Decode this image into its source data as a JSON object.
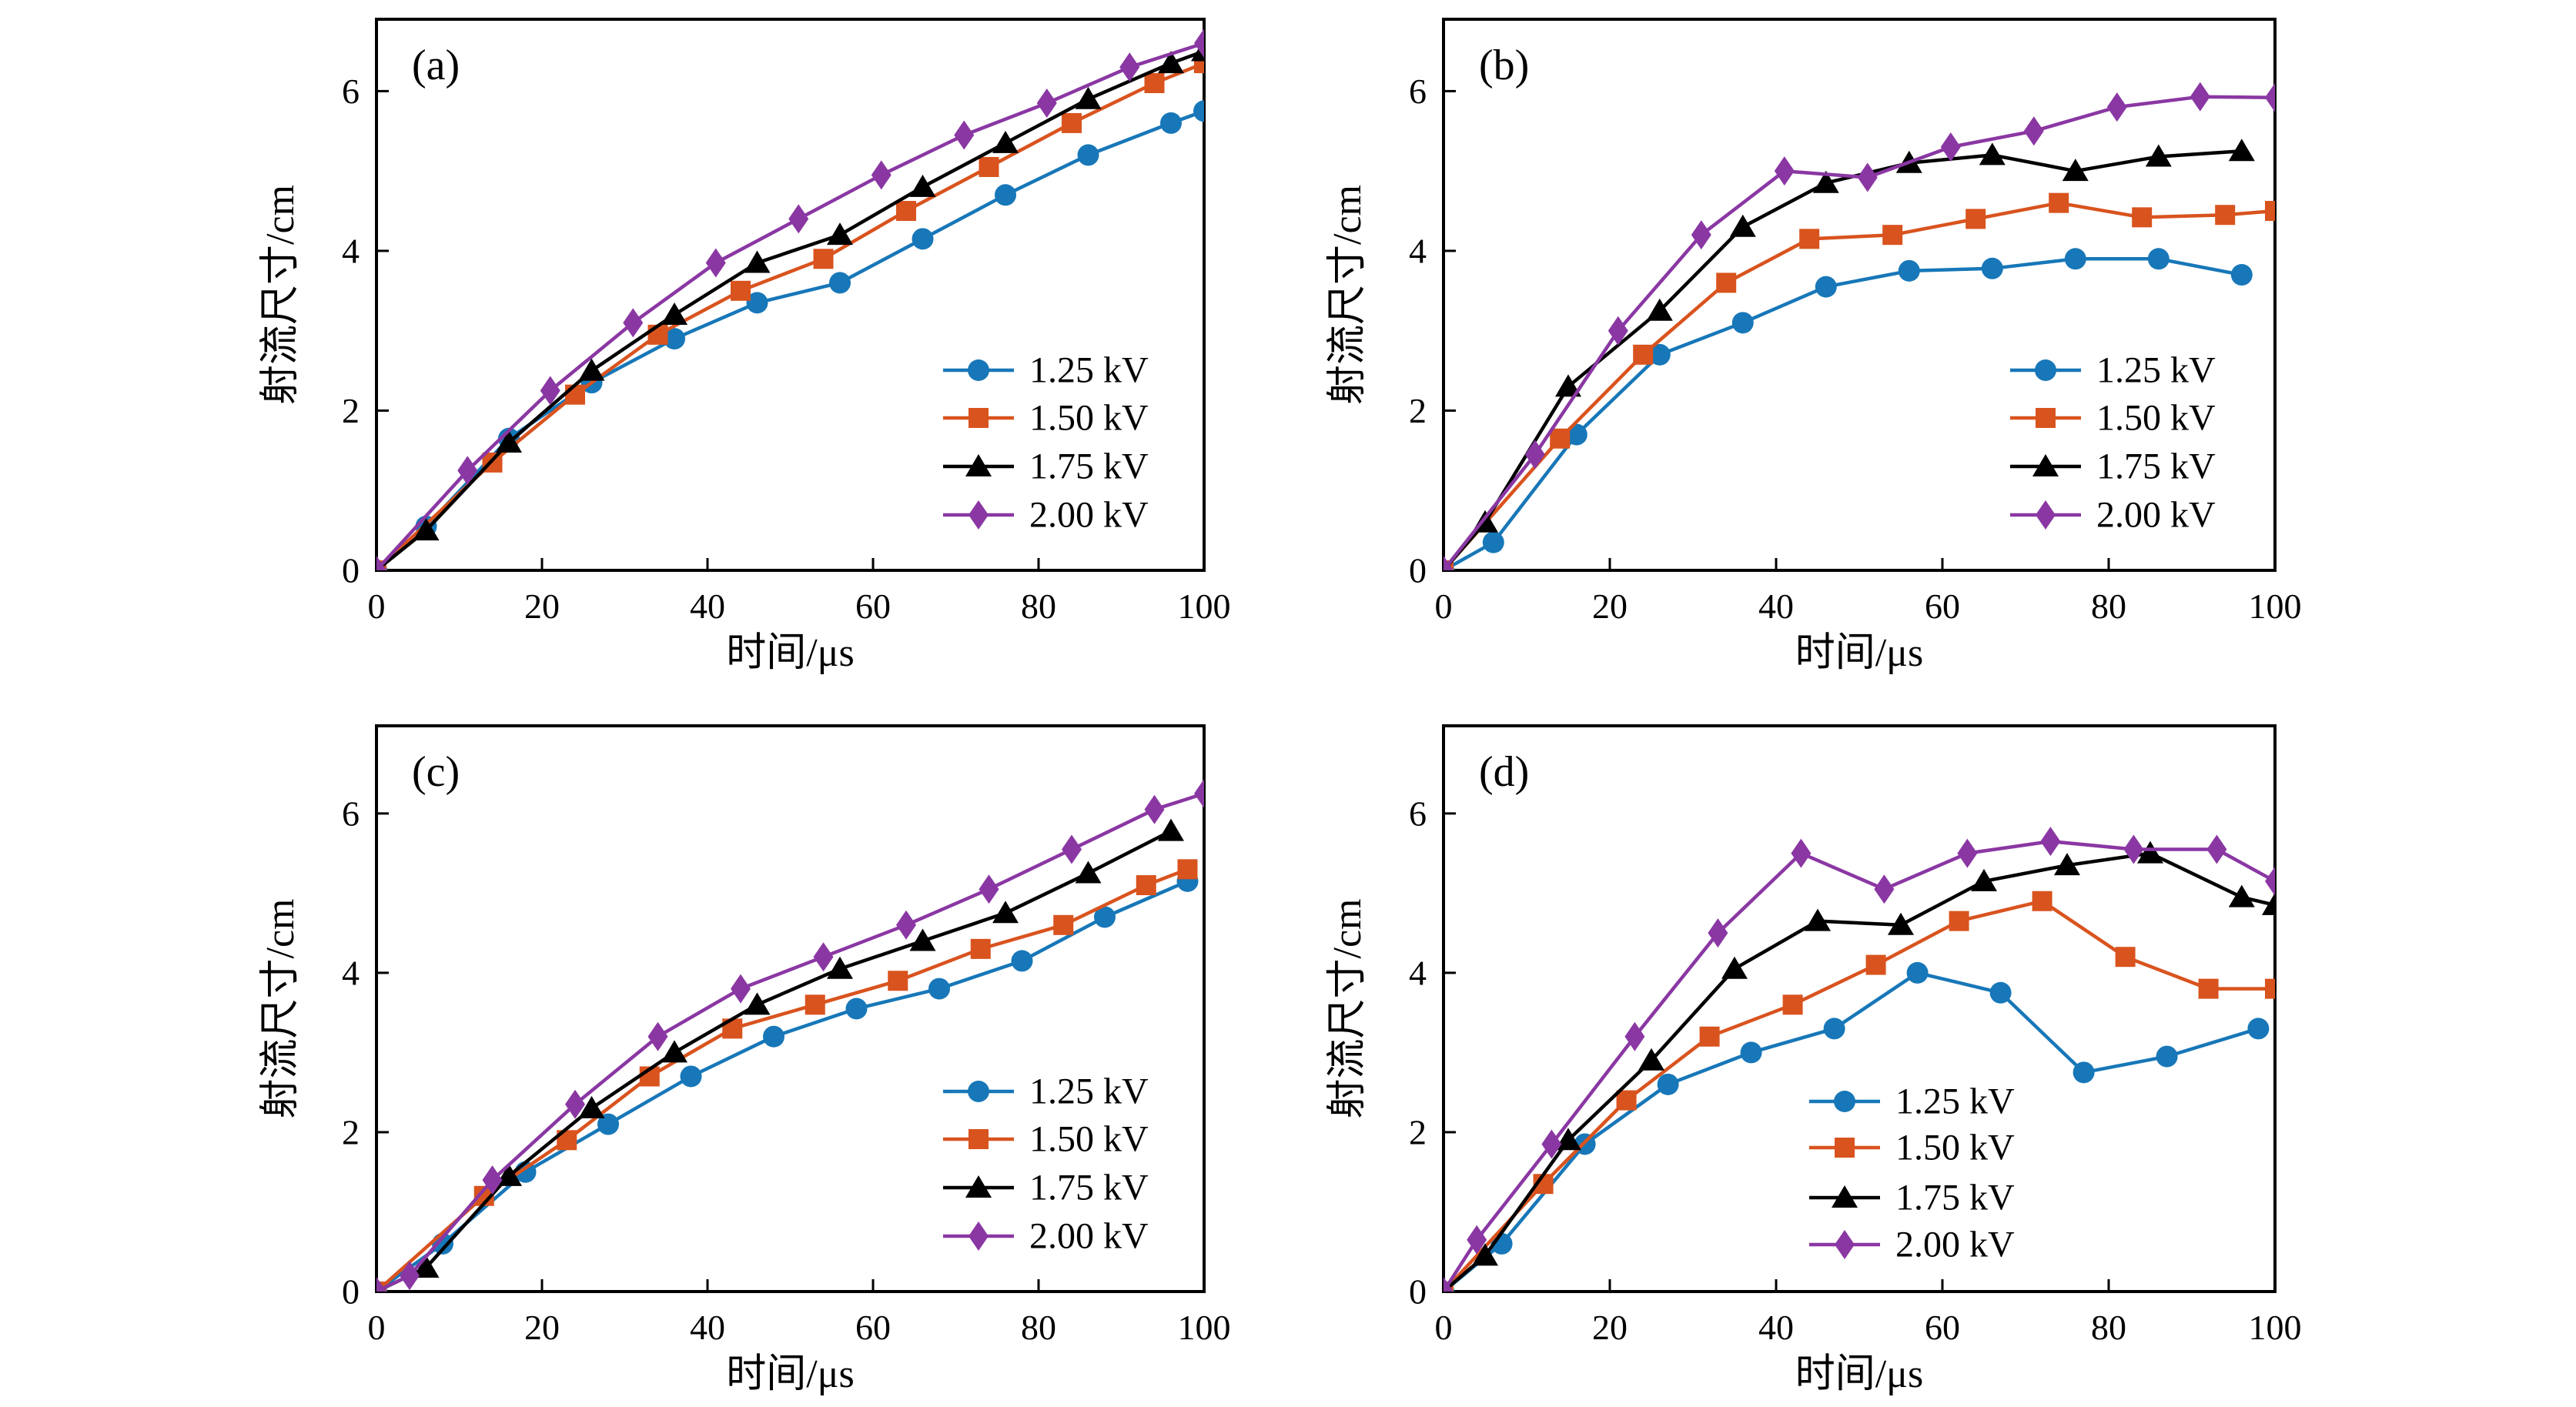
{
  "figure": {
    "background": "#ffffff",
    "x_axis_label": "时间/μs",
    "y_axis_label": "射流尺寸/cm",
    "legend_labels": [
      "1.25 kV",
      "1.50 kV",
      "1.75 kV",
      "2.00 kV"
    ],
    "series_colors": {
      "1.25 kV": "#1777B8",
      "1.50 kV": "#D9531E",
      "1.75 kV": "#000000",
      "2.00 kV": "#8A37A3"
    },
    "series_markers": {
      "1.25 kV": "circle",
      "1.50 kV": "square",
      "1.75 kV": "triangle",
      "2.00 kV": "diamond"
    }
  },
  "chart_data": [
    {
      "type": "line",
      "panel_label": "(a)",
      "xlabel": "时间/μs",
      "ylabel": "射流尺寸/cm",
      "xlim": [
        0,
        100
      ],
      "ylim": [
        0,
        6.9
      ],
      "x_ticks": [
        0,
        20,
        40,
        60,
        80,
        100
      ],
      "y_ticks": [
        0,
        2,
        4,
        6
      ],
      "grid": false,
      "legend_position": "right-middle",
      "series": [
        {
          "name": "1.25 kV",
          "color": "#1777B8",
          "marker": "circle",
          "points": [
            [
              0,
              0
            ],
            [
              6,
              0.55
            ],
            [
              16,
              1.65
            ],
            [
              26,
              2.35
            ],
            [
              36,
              2.9
            ],
            [
              46,
              3.35
            ],
            [
              56,
              3.6
            ],
            [
              66,
              4.15
            ],
            [
              76,
              4.7
            ],
            [
              86,
              5.2
            ],
            [
              96,
              5.6
            ],
            [
              100,
              5.75
            ]
          ]
        },
        {
          "name": "1.50 kV",
          "color": "#D9531E",
          "marker": "square",
          "points": [
            [
              0,
              0
            ],
            [
              14,
              1.35
            ],
            [
              24,
              2.2
            ],
            [
              34,
              2.95
            ],
            [
              44,
              3.5
            ],
            [
              54,
              3.9
            ],
            [
              64,
              4.5
            ],
            [
              74,
              5.05
            ],
            [
              84,
              5.6
            ],
            [
              94,
              6.1
            ],
            [
              100,
              6.35
            ]
          ]
        },
        {
          "name": "1.75 kV",
          "color": "#000000",
          "marker": "triangle",
          "points": [
            [
              0,
              0
            ],
            [
              6,
              0.5
            ],
            [
              16,
              1.6
            ],
            [
              26,
              2.5
            ],
            [
              36,
              3.2
            ],
            [
              46,
              3.85
            ],
            [
              56,
              4.2
            ],
            [
              66,
              4.8
            ],
            [
              76,
              5.35
            ],
            [
              86,
              5.9
            ],
            [
              96,
              6.35
            ],
            [
              100,
              6.5
            ]
          ]
        },
        {
          "name": "2.00 kV",
          "color": "#8A37A3",
          "marker": "diamond",
          "points": [
            [
              0,
              0
            ],
            [
              11,
              1.25
            ],
            [
              21,
              2.25
            ],
            [
              31,
              3.1
            ],
            [
              41,
              3.85
            ],
            [
              51,
              4.4
            ],
            [
              61,
              4.95
            ],
            [
              71,
              5.45
            ],
            [
              81,
              5.85
            ],
            [
              91,
              6.3
            ],
            [
              100,
              6.6
            ]
          ]
        }
      ]
    },
    {
      "type": "line",
      "panel_label": "(b)",
      "xlabel": "时间/μs",
      "ylabel": "射流尺寸/cm",
      "xlim": [
        0,
        100
      ],
      "ylim": [
        0,
        6.9
      ],
      "x_ticks": [
        0,
        20,
        40,
        60,
        80,
        100
      ],
      "y_ticks": [
        0,
        2,
        4,
        6
      ],
      "grid": false,
      "legend_position": "right-middle",
      "series": [
        {
          "name": "1.25 kV",
          "color": "#1777B8",
          "marker": "circle",
          "points": [
            [
              0,
              0
            ],
            [
              6,
              0.35
            ],
            [
              16,
              1.7
            ],
            [
              26,
              2.7
            ],
            [
              36,
              3.1
            ],
            [
              46,
              3.55
            ],
            [
              56,
              3.75
            ],
            [
              66,
              3.78
            ],
            [
              76,
              3.9
            ],
            [
              86,
              3.9
            ],
            [
              96,
              3.7
            ]
          ]
        },
        {
          "name": "1.50 kV",
          "color": "#D9531E",
          "marker": "square",
          "points": [
            [
              0,
              0
            ],
            [
              14,
              1.65
            ],
            [
              24,
              2.7
            ],
            [
              34,
              3.6
            ],
            [
              44,
              4.15
            ],
            [
              54,
              4.2
            ],
            [
              64,
              4.4
            ],
            [
              74,
              4.6
            ],
            [
              84,
              4.42
            ],
            [
              94,
              4.45
            ],
            [
              100,
              4.5
            ]
          ]
        },
        {
          "name": "1.75 kV",
          "color": "#000000",
          "marker": "triangle",
          "points": [
            [
              0,
              0
            ],
            [
              5,
              0.6
            ],
            [
              15,
              2.3
            ],
            [
              26,
              3.25
            ],
            [
              36,
              4.3
            ],
            [
              46,
              4.85
            ],
            [
              56,
              5.1
            ],
            [
              66,
              5.2
            ],
            [
              76,
              5.0
            ],
            [
              86,
              5.18
            ],
            [
              96,
              5.25
            ]
          ]
        },
        {
          "name": "2.00 kV",
          "color": "#8A37A3",
          "marker": "diamond",
          "points": [
            [
              0,
              0
            ],
            [
              11,
              1.45
            ],
            [
              21,
              3.0
            ],
            [
              31,
              4.2
            ],
            [
              41,
              5.0
            ],
            [
              51,
              4.92
            ],
            [
              61,
              5.3
            ],
            [
              71,
              5.5
            ],
            [
              81,
              5.8
            ],
            [
              91,
              5.93
            ],
            [
              100,
              5.92
            ]
          ]
        }
      ]
    },
    {
      "type": "line",
      "panel_label": "(c)",
      "xlabel": "时间/μs",
      "ylabel": "射流尺寸/cm",
      "xlim": [
        0,
        100
      ],
      "ylim": [
        0,
        7.1
      ],
      "x_ticks": [
        0,
        20,
        40,
        60,
        80,
        100
      ],
      "y_ticks": [
        0,
        2,
        4,
        6
      ],
      "grid": false,
      "legend_position": "right-middle",
      "series": [
        {
          "name": "1.25 kV",
          "color": "#1777B8",
          "marker": "circle",
          "points": [
            [
              0,
              0
            ],
            [
              8,
              0.6
            ],
            [
              18,
              1.5
            ],
            [
              28,
              2.1
            ],
            [
              38,
              2.7
            ],
            [
              48,
              3.2
            ],
            [
              58,
              3.55
            ],
            [
              68,
              3.8
            ],
            [
              78,
              4.15
            ],
            [
              88,
              4.7
            ],
            [
              98,
              5.15
            ]
          ]
        },
        {
          "name": "1.50 kV",
          "color": "#D9531E",
          "marker": "square",
          "points": [
            [
              0,
              0
            ],
            [
              13,
              1.2
            ],
            [
              23,
              1.9
            ],
            [
              33,
              2.7
            ],
            [
              43,
              3.3
            ],
            [
              53,
              3.6
            ],
            [
              63,
              3.9
            ],
            [
              73,
              4.3
            ],
            [
              83,
              4.6
            ],
            [
              93,
              5.1
            ],
            [
              98,
              5.3
            ]
          ]
        },
        {
          "name": "1.75 kV",
          "color": "#000000",
          "marker": "triangle",
          "points": [
            [
              0,
              0
            ],
            [
              6,
              0.3
            ],
            [
              16,
              1.45
            ],
            [
              26,
              2.3
            ],
            [
              36,
              3.0
            ],
            [
              46,
              3.6
            ],
            [
              56,
              4.05
            ],
            [
              66,
              4.4
            ],
            [
              76,
              4.75
            ],
            [
              86,
              5.25
            ],
            [
              96,
              5.78
            ]
          ]
        },
        {
          "name": "2.00 kV",
          "color": "#8A37A3",
          "marker": "diamond",
          "points": [
            [
              0,
              0
            ],
            [
              4,
              0.2
            ],
            [
              14,
              1.4
            ],
            [
              24,
              2.35
            ],
            [
              34,
              3.2
            ],
            [
              44,
              3.8
            ],
            [
              54,
              4.2
            ],
            [
              64,
              4.6
            ],
            [
              74,
              5.05
            ],
            [
              84,
              5.55
            ],
            [
              94,
              6.05
            ],
            [
              100,
              6.25
            ]
          ]
        }
      ]
    },
    {
      "type": "line",
      "panel_label": "(d)",
      "xlabel": "时间/μs",
      "ylabel": "射流尺寸/cm",
      "xlim": [
        0,
        100
      ],
      "ylim": [
        0,
        7.1
      ],
      "x_ticks": [
        0,
        20,
        40,
        60,
        80,
        100
      ],
      "y_ticks": [
        0,
        2,
        4,
        6
      ],
      "grid": false,
      "legend_position": "bottom-center",
      "series": [
        {
          "name": "1.25 kV",
          "color": "#1777B8",
          "marker": "circle",
          "points": [
            [
              0,
              0
            ],
            [
              7,
              0.6
            ],
            [
              17,
              1.85
            ],
            [
              27,
              2.6
            ],
            [
              37,
              3.0
            ],
            [
              47,
              3.3
            ],
            [
              57,
              4.0
            ],
            [
              67,
              3.75
            ],
            [
              77,
              2.75
            ],
            [
              87,
              2.95
            ],
            [
              98,
              3.3
            ]
          ]
        },
        {
          "name": "1.50 kV",
          "color": "#D9531E",
          "marker": "square",
          "points": [
            [
              0,
              0
            ],
            [
              12,
              1.35
            ],
            [
              22,
              2.4
            ],
            [
              32,
              3.2
            ],
            [
              42,
              3.6
            ],
            [
              52,
              4.1
            ],
            [
              62,
              4.65
            ],
            [
              72,
              4.9
            ],
            [
              82,
              4.2
            ],
            [
              92,
              3.8
            ],
            [
              100,
              3.8
            ]
          ]
        },
        {
          "name": "1.75 kV",
          "color": "#000000",
          "marker": "triangle",
          "points": [
            [
              0,
              0
            ],
            [
              5,
              0.45
            ],
            [
              15,
              1.9
            ],
            [
              25,
              2.9
            ],
            [
              35,
              4.05
            ],
            [
              45,
              4.65
            ],
            [
              55,
              4.6
            ],
            [
              65,
              5.15
            ],
            [
              75,
              5.35
            ],
            [
              85,
              5.5
            ],
            [
              96,
              4.95
            ],
            [
              100,
              4.85
            ]
          ]
        },
        {
          "name": "2.00 kV",
          "color": "#8A37A3",
          "marker": "diamond",
          "points": [
            [
              0,
              0
            ],
            [
              4,
              0.65
            ],
            [
              13,
              1.85
            ],
            [
              23,
              3.2
            ],
            [
              33,
              4.5
            ],
            [
              43,
              5.5
            ],
            [
              53,
              5.05
            ],
            [
              63,
              5.5
            ],
            [
              73,
              5.65
            ],
            [
              83,
              5.55
            ],
            [
              93,
              5.55
            ],
            [
              100,
              5.15
            ]
          ]
        }
      ]
    }
  ]
}
